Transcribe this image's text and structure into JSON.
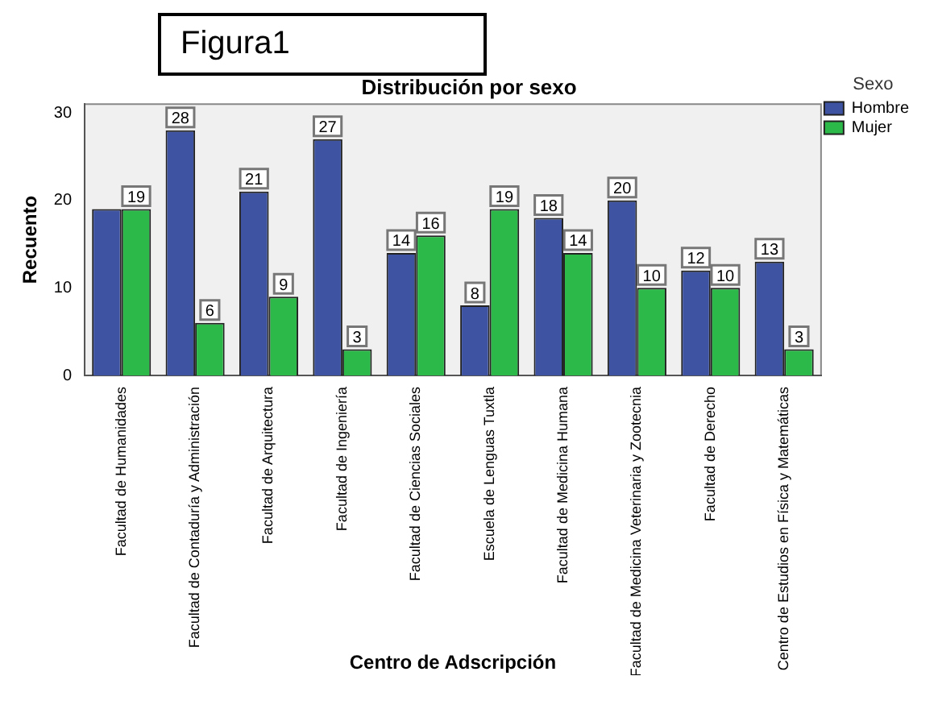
{
  "chart_data": {
    "type": "bar",
    "title": "Distribución por sexo",
    "xlabel": "Centro de Adscripción",
    "ylabel": "Recuento",
    "legend_title": "Sexo",
    "annotations": [
      "Figura1"
    ],
    "categories": [
      "Facultad de Humanidades",
      "Facultad de Contaduría y Administración",
      "Facultad de Arquitectura",
      "Facultad de Ingeniería",
      "Facultad de Ciencias Sociales",
      "Escuela de Lenguas Tuxtla",
      "Facultad de Medicina Humana",
      "Facultad de Medicina Veterinaria y Zootecnia",
      "Facultad de Derecho",
      "Centro de Estudios en Física y Matemáticas"
    ],
    "series": [
      {
        "name": "Hombre",
        "color": "#3e54a3",
        "values": [
          19,
          28,
          21,
          27,
          14,
          8,
          18,
          20,
          12,
          13
        ],
        "value_labels": [
          null,
          "28",
          "21",
          "27",
          "14",
          "8",
          "18",
          "20",
          "12",
          "13"
        ]
      },
      {
        "name": "Mujer",
        "color": "#2db84a",
        "values": [
          19,
          6,
          9,
          3,
          16,
          19,
          14,
          10,
          10,
          3
        ],
        "value_labels": [
          "19",
          "6",
          "9",
          "3",
          "16",
          "19",
          "14",
          "10",
          "10",
          "3"
        ]
      }
    ],
    "ylim": [
      0,
      31
    ],
    "yticks": [
      0,
      10,
      20,
      30
    ],
    "grid": false,
    "legend": "top right"
  }
}
